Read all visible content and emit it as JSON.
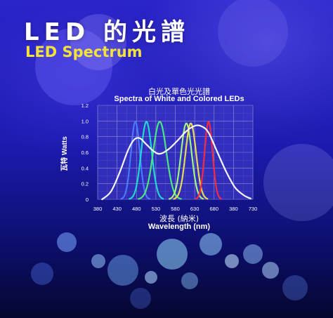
{
  "header": {
    "title": "LED 的光譜",
    "subtitle": "LED Spectrum"
  },
  "colors": {
    "background": "#1d1bb0",
    "subtitle": "#f4e23a",
    "grid": "#8e90d6",
    "plot_background": "#3b36c4"
  },
  "chart_data": {
    "type": "line",
    "title": "白光及單色光光譜",
    "subtitle": "Spectra of White and Colored LEDs",
    "xlabel": "Wavelength (nm)",
    "xlabel_zh": "波長 (納米)",
    "ylabel": "Watts",
    "ylabel_zh": "瓦特",
    "xlim": [
      380,
      730
    ],
    "ylim": [
      0,
      1.2
    ],
    "x_ticks": [
      "380",
      "430",
      "480",
      "530",
      "580",
      "630",
      "680",
      "380",
      "730"
    ],
    "y_ticks": [
      "0",
      "0.2",
      "0.4",
      "0.6",
      "0.8",
      "1.0",
      "1.2"
    ],
    "grid": true,
    "series": [
      {
        "color": "#4a7cff",
        "peak": 465,
        "height": 0.99,
        "width": 10
      },
      {
        "color": "#20e0d0",
        "peak": 490,
        "height": 0.99,
        "width": 12
      },
      {
        "color": "#4cf07a",
        "peak": 520,
        "height": 0.99,
        "width": 15
      },
      {
        "color": "#a6ff7a",
        "peak": 580,
        "height": 0.97,
        "width": 12
      },
      {
        "color": "#f2e34a",
        "peak": 590,
        "height": 0.97,
        "width": 12
      },
      {
        "color": "#ff2a3a",
        "peak": 630,
        "height": 0.99,
        "width": 9
      },
      {
        "color": "#ffffff",
        "points": [
          [
            390,
            0.0
          ],
          [
            410,
            0.1
          ],
          [
            430,
            0.35
          ],
          [
            448,
            0.62
          ],
          [
            462,
            0.76
          ],
          [
            475,
            0.78
          ],
          [
            490,
            0.7
          ],
          [
            505,
            0.62
          ],
          [
            520,
            0.58
          ],
          [
            540,
            0.64
          ],
          [
            560,
            0.75
          ],
          [
            580,
            0.87
          ],
          [
            600,
            0.94
          ],
          [
            615,
            0.93
          ],
          [
            630,
            0.85
          ],
          [
            650,
            0.6
          ],
          [
            670,
            0.35
          ],
          [
            690,
            0.15
          ],
          [
            710,
            0.05
          ],
          [
            725,
            0.01
          ]
        ]
      }
    ]
  }
}
